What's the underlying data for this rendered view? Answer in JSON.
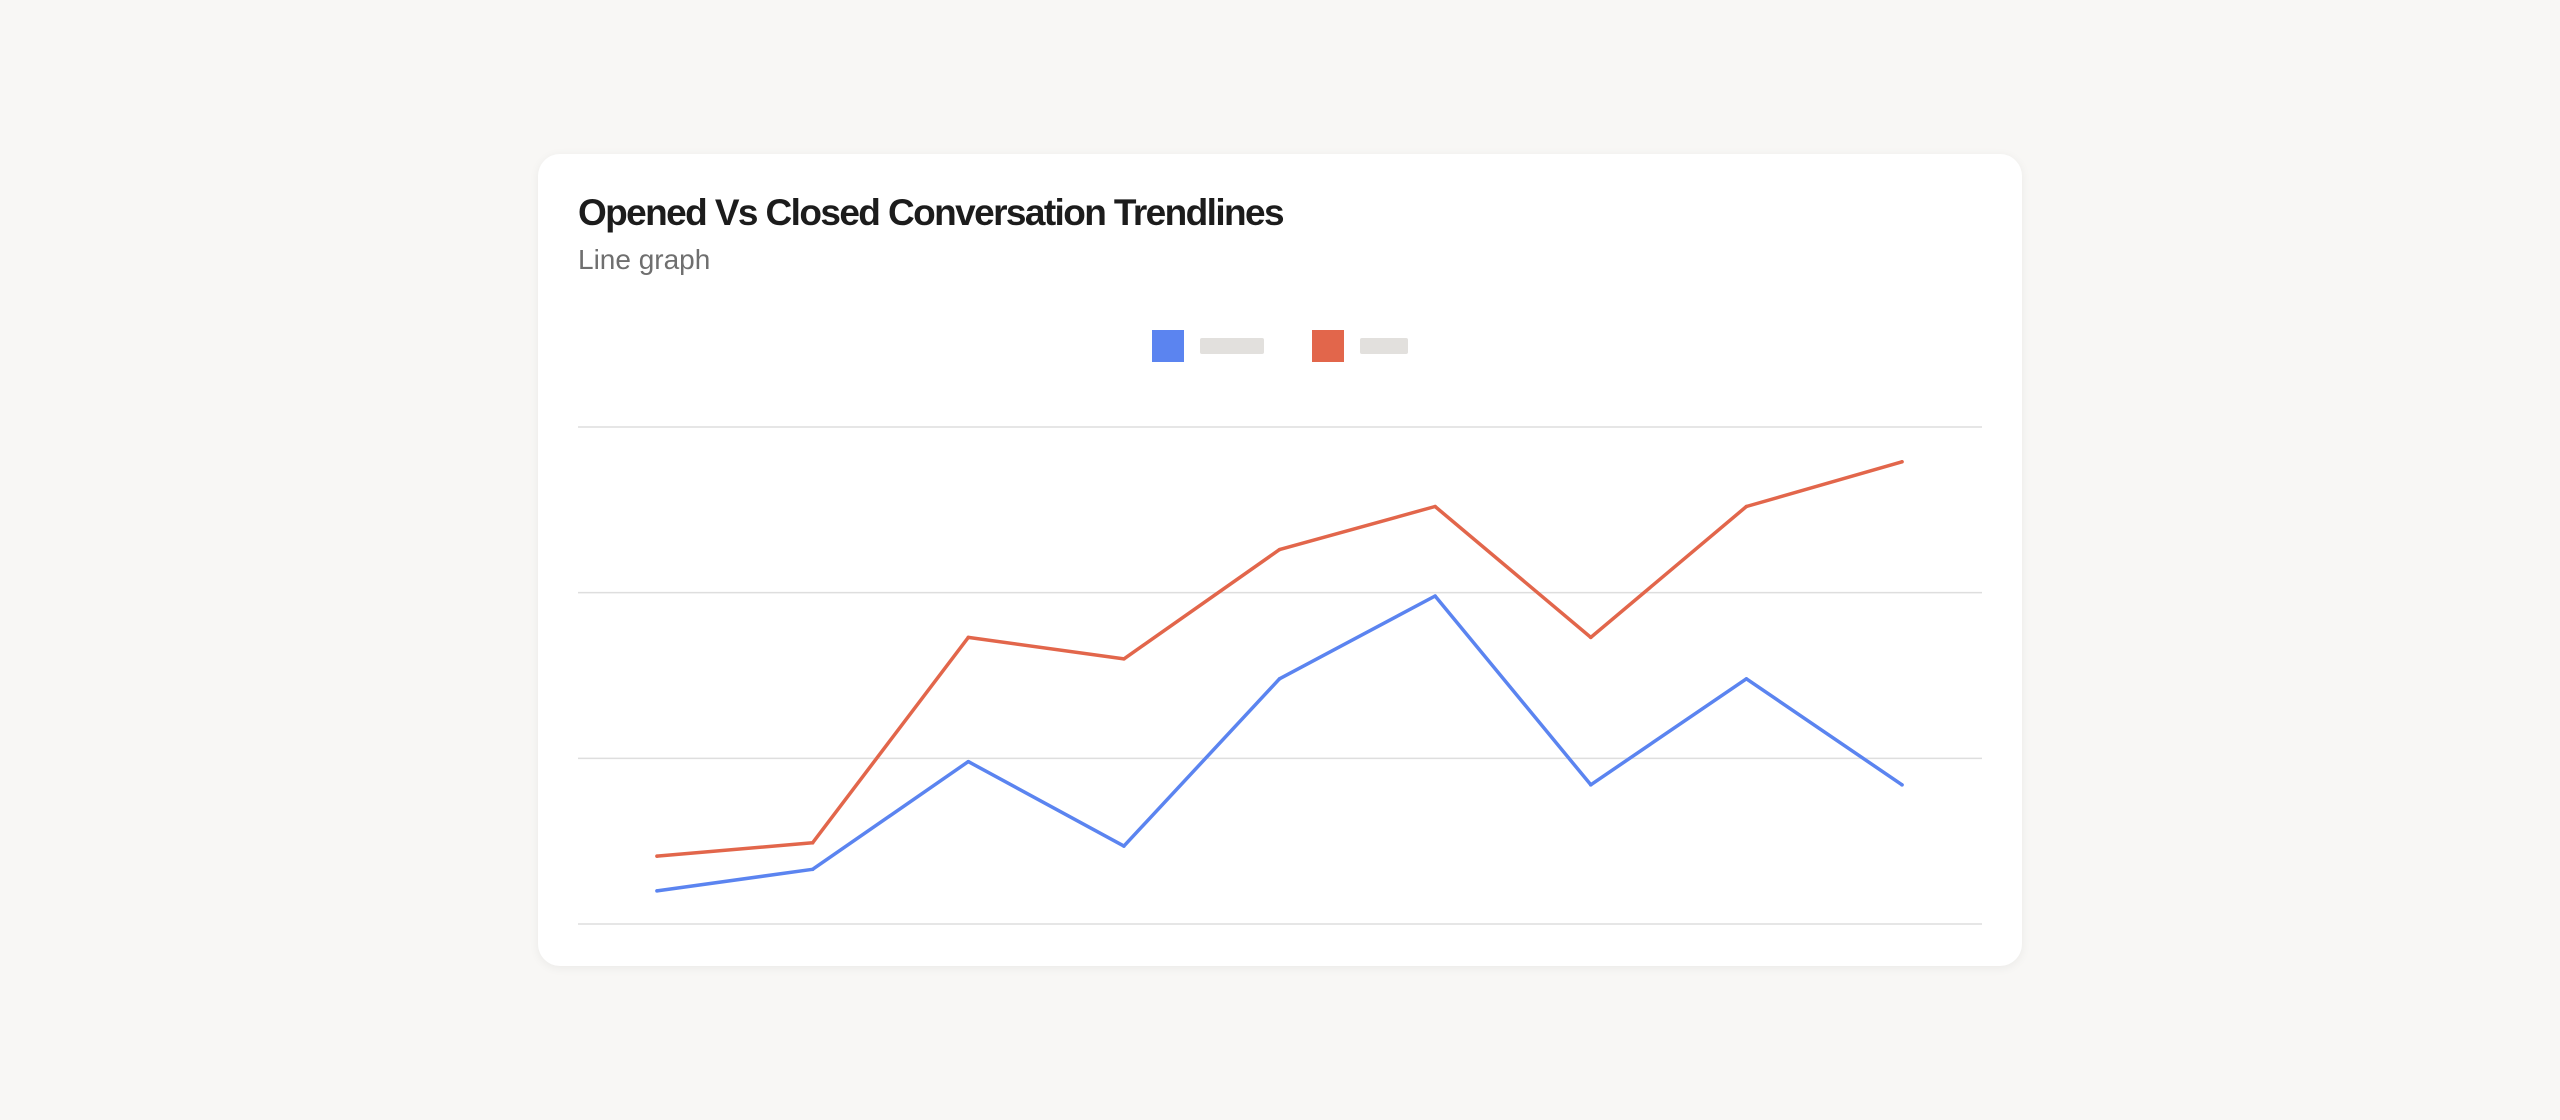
{
  "header": {
    "title": "Opened Vs Closed Conversation Trendlines",
    "subtitle": "Line graph"
  },
  "colors": {
    "background": "#f8f7f5",
    "card": "#ffffff",
    "gridline": "#dedede",
    "legend_placeholder": "#e2e0dd"
  },
  "chart_data": {
    "type": "line",
    "title": "Opened Vs Closed Conversation Trendlines",
    "subtitle": "Line graph",
    "xlabel": "",
    "ylabel": "",
    "x": [
      1,
      2,
      3,
      4,
      5,
      6,
      7,
      8,
      9
    ],
    "ylim": [
      0,
      3
    ],
    "grid": true,
    "legend": "top-center",
    "series": [
      {
        "color": "#5b84f0",
        "values": [
          0.2,
          0.33,
          0.98,
          0.47,
          1.48,
          1.98,
          0.84,
          1.48,
          0.84
        ]
      },
      {
        "color": "#e2664b",
        "values": [
          0.41,
          0.49,
          1.73,
          1.6,
          2.26,
          2.52,
          1.73,
          2.52,
          2.79
        ]
      }
    ]
  }
}
